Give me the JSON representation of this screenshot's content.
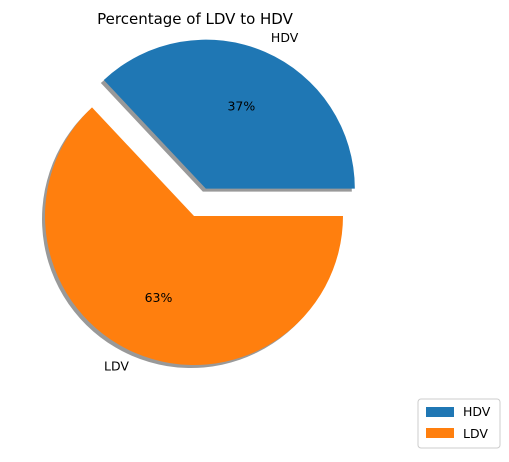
{
  "chart_data": {
    "type": "pie",
    "title": "Percentage of LDV to HDV",
    "labels": [
      "HDV",
      "LDV"
    ],
    "values": [
      37,
      63
    ],
    "percent_labels": [
      "37%",
      "63%"
    ],
    "colors": [
      "#1f77b4",
      "#ff7f0e"
    ],
    "explode": [
      0.2,
      0
    ],
    "shadow": true,
    "start_angle_deg": 0,
    "legend": {
      "placement": "bottom-right",
      "entries": [
        "HDV",
        "LDV"
      ]
    }
  }
}
